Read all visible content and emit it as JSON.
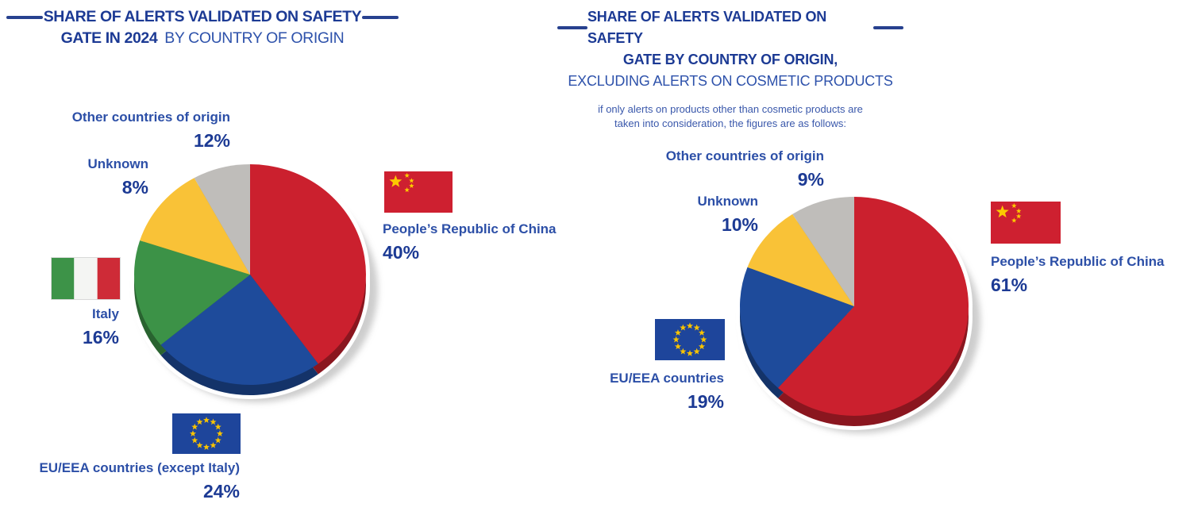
{
  "page": {
    "background": "#ffffff"
  },
  "colors": {
    "title_bold_text": "#1c3a94",
    "title_regular_text": "#2e52ab",
    "subtitle_text": "#3a58ab",
    "label_text": "#2c4fa7",
    "pct_text": "#1c3a94",
    "dash": "#27418f",
    "slice_red": "#cb202e",
    "slice_blue": "#1e4b9b",
    "slice_green": "#3c9247",
    "slice_yellow": "#f9c237",
    "slice_gray": "#bfbdba",
    "china_flag_red": "#ce2030",
    "china_flag_star": "#fcca00",
    "eu_flag_blue": "#1e459b",
    "eu_flag_star": "#f8c300",
    "italy_flag_green": "#3d9348",
    "italy_flag_white": "#f4f5f3",
    "italy_flag_red": "#ce2b37"
  },
  "left_chart": {
    "title_line1_bold": "SHARE OF ALERTS VALIDATED ON SAFETY",
    "title_line2_bold": "GATE IN 2024",
    "title_line2_regular": "BY COUNTRY OF ORIGIN",
    "labels": {
      "other": {
        "text": "Other countries of origin",
        "pct": "12%"
      },
      "unknown": {
        "text": "Unknown",
        "pct": "8%"
      },
      "china": {
        "text": "People’s Republic of China",
        "pct": "40%"
      },
      "italy": {
        "text": "Italy",
        "pct": "16%"
      },
      "eu": {
        "text": "EU/EEA countries (except Italy)",
        "pct": "24%"
      }
    }
  },
  "right_chart": {
    "title_line1_bold": "SHARE OF ALERTS VALIDATED ON SAFETY",
    "title_line2_bold": "GATE BY COUNTRY OF ORIGIN,",
    "title_line3_regular": "EXCLUDING ALERTS ON COSMETIC PRODUCTS",
    "subtitle_line1": "if only alerts on products other than cosmetic products are",
    "subtitle_line2": "taken into consideration, the figures are as follows:",
    "labels": {
      "other": {
        "text": "Other countries of origin",
        "pct": "9%"
      },
      "unknown": {
        "text": "Unknown",
        "pct": "10%"
      },
      "china": {
        "text": "People’s Republic of China",
        "pct": "61%"
      },
      "eu": {
        "text": "EU/EEA countries",
        "pct": "19%"
      }
    }
  },
  "chart_data": [
    {
      "type": "pie",
      "title": "SHARE OF ALERTS VALIDATED ON SAFETY GATE IN 2024 BY COUNTRY OF ORIGIN",
      "unit": "%",
      "style": "3d-pie",
      "start_angle_deg": 0,
      "direction": "clockwise",
      "legend_position": "around",
      "segments": [
        {
          "label": "People’s Republic of China",
          "value": 40,
          "color": "#cb202e"
        },
        {
          "label": "EU/EEA countries (except Italy)",
          "value": 24,
          "color": "#1e4b9b"
        },
        {
          "label": "Italy",
          "value": 16,
          "color": "#3c9247"
        },
        {
          "label": "Other countries of origin",
          "value": 12,
          "color": "#f9c237"
        },
        {
          "label": "Unknown",
          "value": 8,
          "color": "#bfbdba"
        }
      ]
    },
    {
      "type": "pie",
      "title": "SHARE OF ALERTS VALIDATED ON SAFETY GATE BY COUNTRY OF ORIGIN, EXCLUDING ALERTS ON COSMETIC PRODUCTS",
      "unit": "%",
      "style": "3d-pie",
      "start_angle_deg": 0,
      "direction": "clockwise",
      "legend_position": "around",
      "segments": [
        {
          "label": "People’s Republic of China",
          "value": 61,
          "color": "#cb202e"
        },
        {
          "label": "EU/EEA countries",
          "value": 19,
          "color": "#1e4b9b"
        },
        {
          "label": "Unknown",
          "value": 10,
          "color": "#f9c237"
        },
        {
          "label": "Other countries of origin",
          "value": 9,
          "color": "#bfbdba"
        }
      ]
    }
  ]
}
